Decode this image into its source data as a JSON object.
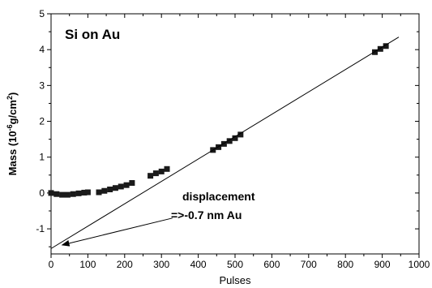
{
  "chart_data": {
    "type": "scatter",
    "title": "Si on Au",
    "xlabel": "Pulses",
    "ylabel_main": "Mass (10",
    "ylabel_sup1": "-6",
    "ylabel_mid": "g/cm",
    "ylabel_sup2": "2",
    "ylabel_end": ")",
    "xlim": [
      0,
      1000
    ],
    "ylim": [
      -1.7,
      5
    ],
    "xticks": [
      0,
      100,
      200,
      300,
      400,
      500,
      600,
      700,
      800,
      900,
      1000
    ],
    "yticks": [
      -1,
      0,
      1,
      2,
      3,
      4,
      5
    ],
    "grid": false,
    "points": [
      [
        0,
        0.0
      ],
      [
        15,
        -0.03
      ],
      [
        30,
        -0.05
      ],
      [
        45,
        -0.05
      ],
      [
        60,
        -0.03
      ],
      [
        75,
        -0.01
      ],
      [
        90,
        0.01
      ],
      [
        100,
        0.02
      ],
      [
        130,
        0.02
      ],
      [
        145,
        0.06
      ],
      [
        160,
        0.1
      ],
      [
        175,
        0.14
      ],
      [
        190,
        0.18
      ],
      [
        205,
        0.22
      ],
      [
        220,
        0.28
      ],
      [
        270,
        0.48
      ],
      [
        285,
        0.55
      ],
      [
        300,
        0.6
      ],
      [
        315,
        0.67
      ],
      [
        440,
        1.2
      ],
      [
        455,
        1.28
      ],
      [
        470,
        1.37
      ],
      [
        485,
        1.45
      ],
      [
        500,
        1.53
      ],
      [
        515,
        1.63
      ],
      [
        880,
        3.93
      ],
      [
        895,
        4.02
      ],
      [
        910,
        4.1
      ]
    ],
    "fit_line": {
      "x": [
        0,
        945
      ],
      "y": [
        -1.55,
        4.35
      ]
    },
    "annotation": {
      "line1": "displacement",
      "line2": "=>-0.7 nm Au",
      "arrow_from": [
        330,
        -0.7
      ],
      "arrow_to": [
        30,
        -1.45
      ]
    }
  }
}
